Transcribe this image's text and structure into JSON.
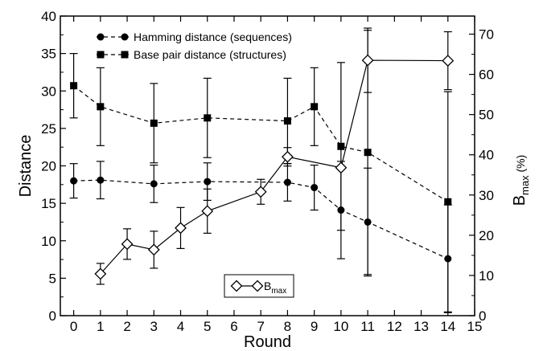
{
  "chart_data": {
    "type": "line",
    "xlabel": "Round",
    "ylabel": "Distance",
    "y2label_main": "B",
    "y2label_sub": "max",
    "y2label_suffix": " (%)",
    "xlim": [
      -0.5,
      15
    ],
    "ylim": [
      0,
      40
    ],
    "y2lim": [
      0,
      74.5
    ],
    "xticks": [
      0,
      1,
      2,
      3,
      4,
      5,
      6,
      7,
      8,
      9,
      10,
      11,
      12,
      13,
      14,
      15
    ],
    "yticks": [
      0,
      5,
      10,
      15,
      20,
      25,
      30,
      35,
      40
    ],
    "y2ticks": [
      0,
      10,
      20,
      30,
      40,
      50,
      60,
      70
    ],
    "series": [
      {
        "name": "Hamming distance (sequences)",
        "axis": "left",
        "marker": "circle",
        "line": "dashed",
        "x": [
          0,
          1,
          3,
          5,
          8,
          9,
          10,
          11,
          14
        ],
        "y": [
          18.0,
          18.1,
          17.6,
          17.9,
          17.8,
          17.1,
          14.1,
          12.5,
          7.6
        ],
        "err": [
          2.3,
          2.5,
          2.5,
          2.5,
          2.5,
          3.0,
          6.5,
          7.2,
          7.2
        ]
      },
      {
        "name": "Base pair distance (structures)",
        "axis": "left",
        "marker": "square",
        "line": "dashed",
        "x": [
          0,
          1,
          3,
          5,
          8,
          9,
          10,
          11,
          14
        ],
        "y": [
          30.7,
          27.9,
          25.7,
          26.4,
          26.0,
          27.9,
          22.6,
          21.8,
          15.2
        ],
        "err": [
          4.3,
          5.2,
          5.3,
          5.3,
          5.7,
          5.2,
          11.2,
          16.3,
          14.7
        ]
      },
      {
        "name": "B_max",
        "label_main": "B",
        "label_sub": "max",
        "axis": "right",
        "marker": "diamond",
        "line": "solid",
        "x": [
          1,
          2,
          3,
          4,
          5,
          7,
          8,
          10,
          11,
          14
        ],
        "y": [
          10.4,
          17.8,
          16.4,
          21.8,
          26.0,
          30.8,
          39.5,
          36.8,
          63.5,
          63.4
        ],
        "err": [
          2.6,
          3.8,
          4.6,
          5.1,
          5.5,
          3.1,
          2.3,
          0,
          8.0,
          7.2
        ]
      }
    ],
    "legend_top": [
      "Hamming distance (sequences)",
      "Base pair distance (structures)"
    ],
    "legend_bottom": "B_max"
  }
}
